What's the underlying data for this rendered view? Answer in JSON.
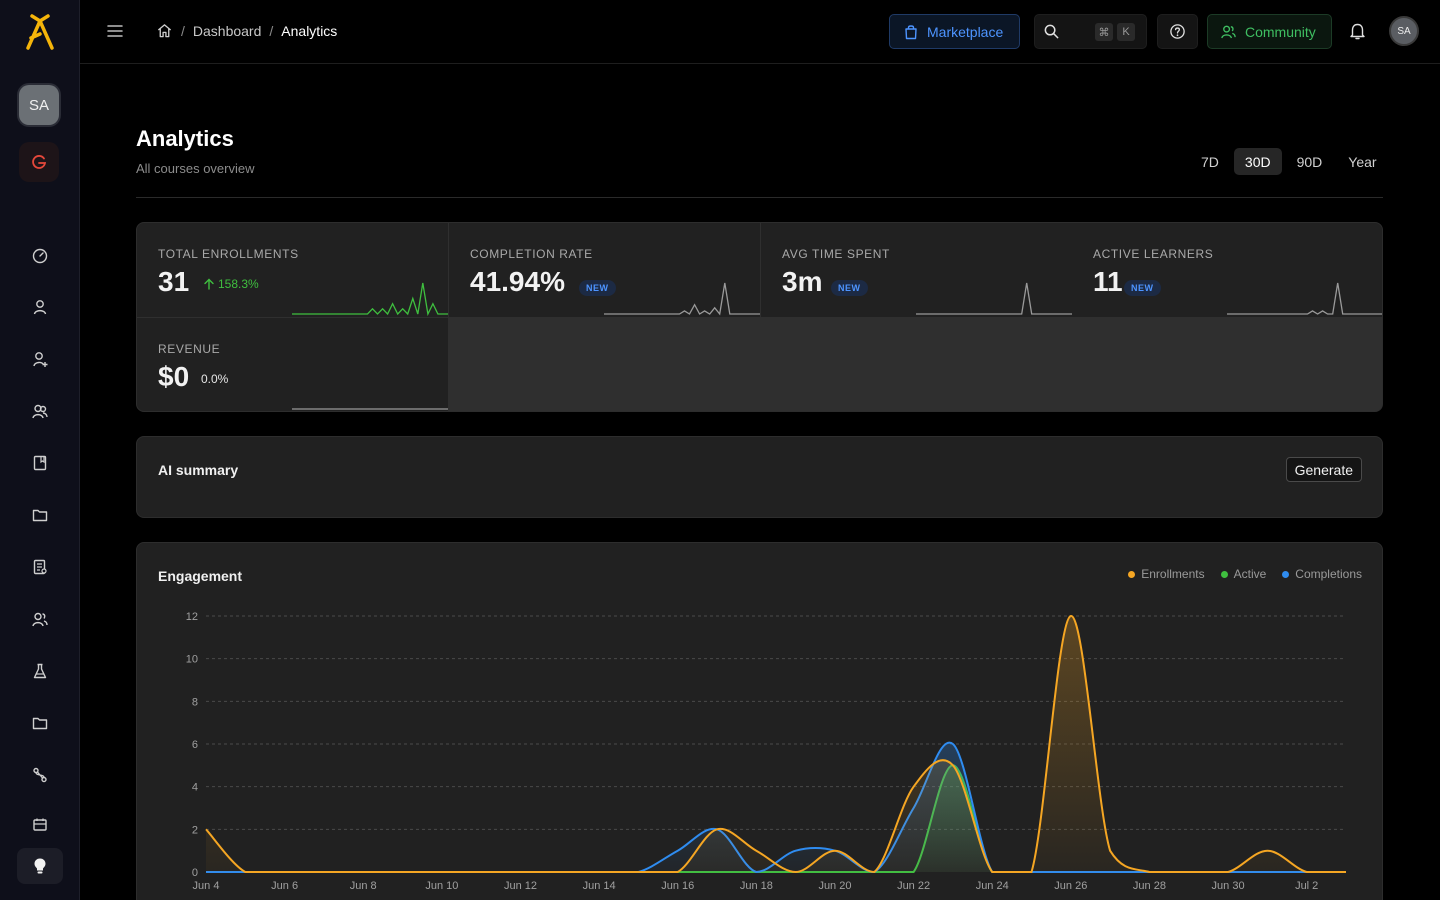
{
  "sidebar": {
    "avatar_initials": "SA",
    "items": [
      {
        "icon": "gauge-icon"
      },
      {
        "icon": "user-icon"
      },
      {
        "icon": "user-plus-icon"
      },
      {
        "icon": "users-icon"
      },
      {
        "icon": "book-icon"
      },
      {
        "icon": "folder-icon"
      },
      {
        "icon": "document-icon"
      },
      {
        "icon": "users-group-icon"
      },
      {
        "icon": "flask-icon"
      },
      {
        "icon": "folder-icon"
      },
      {
        "icon": "route-icon"
      },
      {
        "icon": "calendar-icon"
      }
    ],
    "bottom_icon": "lightbulb-icon"
  },
  "header": {
    "breadcrumb": {
      "parent": "Dashboard",
      "separator": "/",
      "current": "Analytics"
    },
    "marketplace_label": "Marketplace",
    "search_shortcut": [
      "⌘",
      "K"
    ],
    "community_label": "Community",
    "avatar_initials": "SA"
  },
  "page": {
    "title": "Analytics",
    "subtitle": "All courses overview",
    "ranges": [
      "7D",
      "30D",
      "90D",
      "Year"
    ],
    "active_range": "30D"
  },
  "stats": {
    "total_enrollments": {
      "label": "TOTAL ENROLLMENTS",
      "value": "31",
      "delta": "158.3%"
    },
    "completion_rate": {
      "label": "COMPLETION RATE",
      "value": "41.94%",
      "badge": "NEW"
    },
    "avg_time": {
      "label": "AVG TIME SPENT",
      "value": "3m",
      "badge": "NEW"
    },
    "active_learners": {
      "label": "ACTIVE LEARNERS",
      "value": "11",
      "badge": "NEW"
    },
    "revenue": {
      "label": "REVENUE",
      "value": "$0",
      "delta": "0.0%"
    }
  },
  "ai_summary": {
    "title": "AI summary",
    "button": "Generate"
  },
  "colors": {
    "enrollments": "#f5a623",
    "active": "#3fbf3f",
    "completions": "#2f8cf0",
    "accent_blue": "#4d94ff",
    "accent_green": "#3fbf62",
    "brand_yellow": "#f5b50a"
  },
  "engagement": {
    "title": "Engagement",
    "legend": [
      "Enrollments",
      "Active",
      "Completions"
    ]
  },
  "chart_data": {
    "type": "area",
    "ylim": [
      0,
      12
    ],
    "yticks": [
      "0",
      "2",
      "4",
      "6",
      "8",
      "10",
      "12"
    ],
    "xticks": [
      "Jun 4",
      "Jun 6",
      "Jun 8",
      "Jun 10",
      "Jun 12",
      "Jun 14",
      "Jun 16",
      "Jun 18",
      "Jun 20",
      "Jun 22",
      "Jun 24",
      "Jun 26",
      "Jun 28",
      "Jun 30",
      "Jul 2"
    ],
    "x": [
      "Jun 4",
      "Jun 5",
      "Jun 6",
      "Jun 7",
      "Jun 8",
      "Jun 9",
      "Jun 10",
      "Jun 11",
      "Jun 12",
      "Jun 13",
      "Jun 14",
      "Jun 15",
      "Jun 16",
      "Jun 17",
      "Jun 18",
      "Jun 19",
      "Jun 20",
      "Jun 21",
      "Jun 22",
      "Jun 23",
      "Jun 24",
      "Jun 25",
      "Jun 26",
      "Jun 27",
      "Jun 28",
      "Jun 29",
      "Jun 30",
      "Jul 1",
      "Jul 2",
      "Jul 3"
    ],
    "series": [
      {
        "name": "Enrollments",
        "values": [
          2,
          0,
          0,
          0,
          0,
          0,
          0,
          0,
          0,
          0,
          0,
          0,
          0,
          2,
          1,
          0,
          1,
          0,
          4,
          5,
          0,
          0,
          12,
          1,
          0,
          0,
          0,
          1,
          0,
          0
        ]
      },
      {
        "name": "Active",
        "values": [
          0,
          0,
          0,
          0,
          0,
          0,
          0,
          0,
          0,
          0,
          0,
          0,
          0,
          0,
          0,
          0,
          0,
          0,
          0,
          5,
          0,
          0,
          0,
          0,
          0,
          0,
          0,
          0,
          0,
          0
        ]
      },
      {
        "name": "Completions",
        "values": [
          0,
          0,
          0,
          0,
          0,
          0,
          0,
          0,
          0,
          0,
          0,
          0,
          1,
          2,
          0,
          1,
          1,
          0,
          3,
          6,
          0,
          0,
          0,
          0,
          0,
          0,
          0,
          0,
          0,
          0
        ]
      }
    ]
  },
  "sparklines": {
    "total_enrollments": [
      0,
      0,
      0,
      0,
      0,
      0,
      0,
      0,
      0,
      0,
      0,
      0,
      0,
      0,
      0,
      0,
      1,
      0,
      1,
      0,
      2,
      0,
      1,
      0,
      3,
      0,
      6,
      0,
      2,
      0,
      0,
      0
    ],
    "completion_rate": [
      0,
      0,
      0,
      0,
      0,
      0,
      0,
      0,
      0,
      0,
      0,
      0,
      0,
      0,
      0,
      0,
      1,
      0,
      3,
      0,
      1,
      0,
      2,
      0,
      10,
      0,
      0,
      0,
      0,
      0,
      0,
      0
    ],
    "avg_time": [
      0,
      0,
      0,
      0,
      0,
      0,
      0,
      0,
      0,
      0,
      0,
      0,
      0,
      0,
      0,
      0,
      0,
      0,
      0,
      0,
      0,
      0,
      10,
      0,
      0,
      0,
      0,
      0,
      0,
      0,
      0,
      0
    ],
    "active_learners": [
      0,
      0,
      0,
      0,
      0,
      0,
      0,
      0,
      0,
      0,
      0,
      0,
      0,
      0,
      0,
      0,
      0,
      1,
      0,
      1,
      0,
      0,
      10,
      0,
      0,
      0,
      0,
      0,
      0,
      0,
      0,
      0
    ],
    "revenue": [
      0,
      0,
      0,
      0,
      0,
      0,
      0,
      0,
      0,
      0,
      0,
      0,
      0,
      0,
      0,
      0,
      0,
      0,
      0,
      0,
      0,
      0,
      0,
      0,
      0,
      0,
      0,
      0,
      0,
      0,
      0,
      0
    ]
  }
}
